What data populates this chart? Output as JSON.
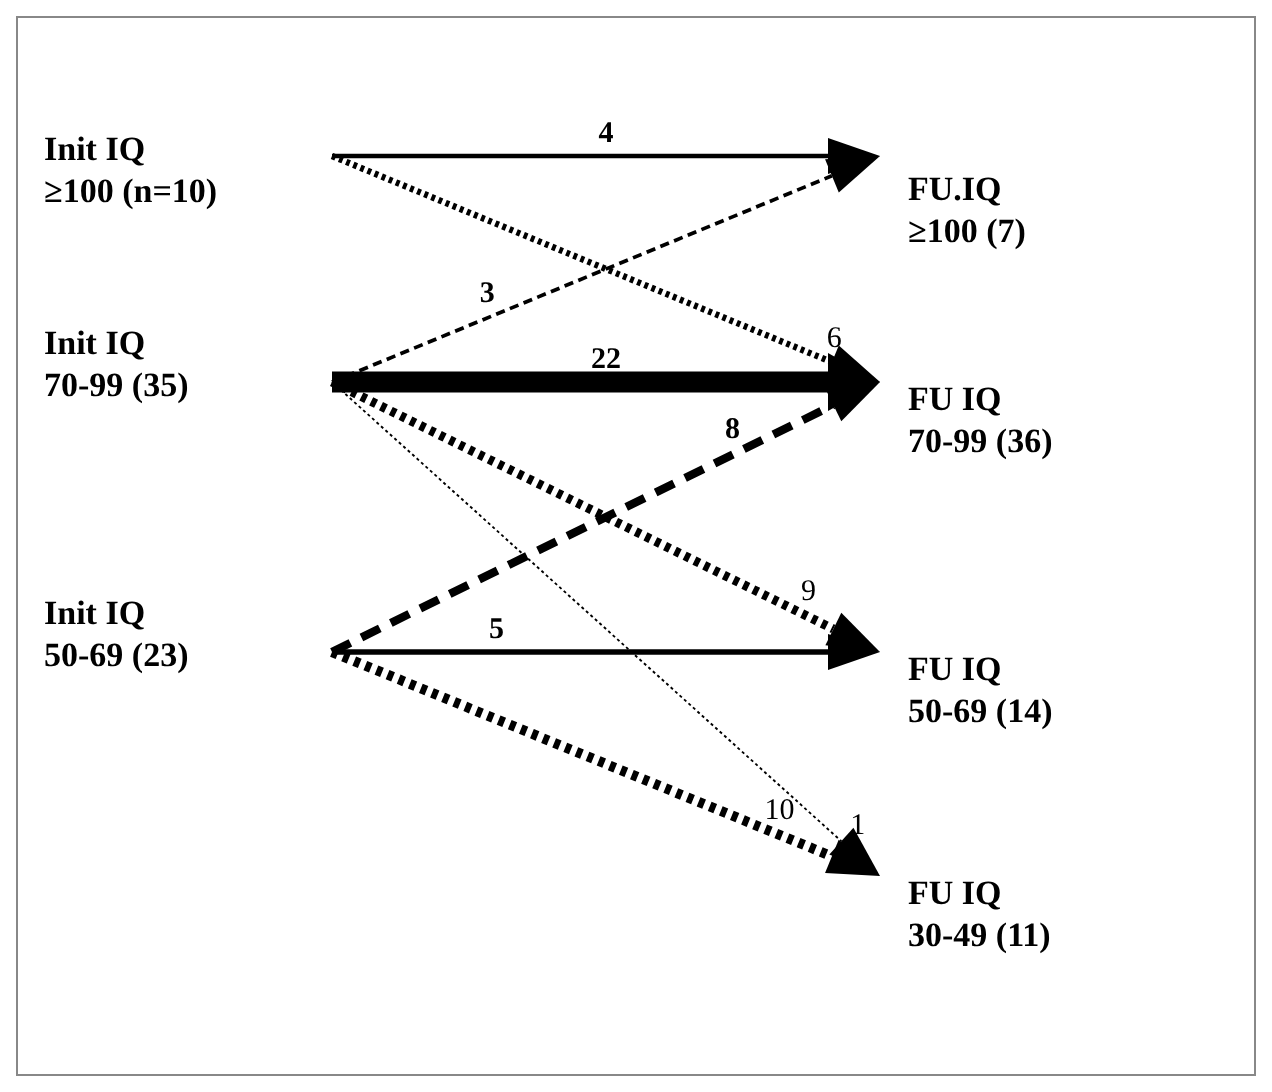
{
  "chart_data": {
    "type": "other",
    "categories": [
      "FU.IQ\n≥100  (7)",
      "FU IQ\n70-99 (36)",
      "FU IQ\n50-69 (14)",
      "FU IQ\n30-49 (11)"
    ],
    "series": [
      {
        "name": "Init IQ\n≥100 (n=10)",
        "color": "#000000",
        "values": [
          4,
          6,
          null,
          null
        ]
      },
      {
        "name": "Init IQ\n70-99 (35)",
        "color": "#000000",
        "values": [
          3,
          22,
          9,
          1
        ]
      },
      {
        "name": "Init IQ\n50-69 (23)",
        "color": "#000000",
        "values": [
          null,
          8,
          5,
          10
        ]
      }
    ],
    "data_labels": true
  }
}
